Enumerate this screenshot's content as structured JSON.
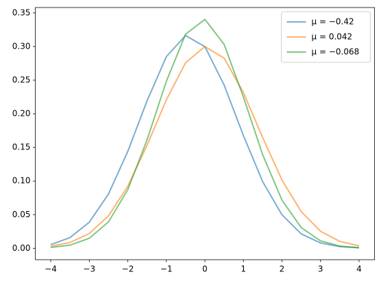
{
  "chart_data": {
    "type": "line",
    "x": [
      -4,
      -3.5,
      -3,
      -2.5,
      -2,
      -1.5,
      -1,
      -0.5,
      0,
      0.5,
      1,
      1.5,
      2,
      2.5,
      3,
      3.5,
      4
    ],
    "series": [
      {
        "name": "μ = −0.42",
        "color": "#1f77b4",
        "values": [
          0.0055,
          0.0158,
          0.0387,
          0.0808,
          0.1441,
          0.2193,
          0.285,
          0.3164,
          0.2998,
          0.2426,
          0.1676,
          0.0989,
          0.0498,
          0.0214,
          0.0079,
          0.0025,
          0.0007
        ]
      },
      {
        "name": "μ = 0.042",
        "color": "#ff7f0e",
        "values": [
          0.003,
          0.0086,
          0.0219,
          0.0483,
          0.0923,
          0.1532,
          0.2207,
          0.2761,
          0.2999,
          0.2827,
          0.2315,
          0.1645,
          0.1015,
          0.0544,
          0.0253,
          0.0102,
          0.0036
        ]
      },
      {
        "name": "μ = −0.068",
        "color": "#2ca02c",
        "values": [
          0.0012,
          0.0046,
          0.0148,
          0.0393,
          0.0872,
          0.1613,
          0.2483,
          0.3185,
          0.3404,
          0.3031,
          0.2248,
          0.1389,
          0.0715,
          0.0307,
          0.011,
          0.0033,
          0.0008
        ]
      }
    ],
    "line_alpha": 0.6,
    "xlim": [
      -4.4,
      4.4
    ],
    "xticks": [
      {
        "value": -4,
        "label": "−4"
      },
      {
        "value": -3,
        "label": "−3"
      },
      {
        "value": -2,
        "label": "−2"
      },
      {
        "value": -1,
        "label": "−1"
      },
      0,
      1,
      2,
      3,
      4
    ],
    "ylim": [
      -0.017,
      0.358
    ],
    "yticks": [
      {
        "value": 0,
        "label": "0.00"
      },
      0.05,
      {
        "value": 0.1,
        "label": "0.10"
      },
      0.15,
      {
        "value": 0.2,
        "label": "0.20"
      },
      0.25,
      {
        "value": 0.3,
        "label": "0.30"
      },
      0.35
    ],
    "grid": false,
    "legend": "upper right"
  }
}
